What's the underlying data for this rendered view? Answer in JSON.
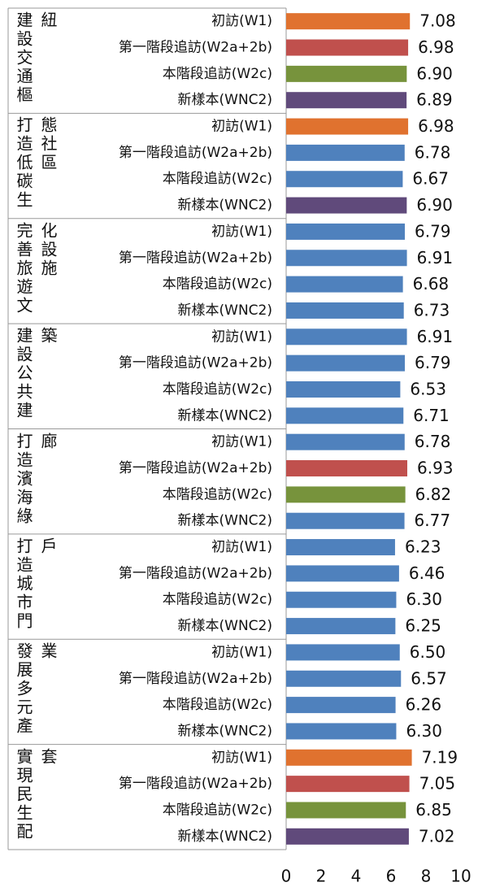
{
  "chart_data": {
    "type": "bar",
    "orientation": "horizontal",
    "categories": [
      "建設交通樞紐",
      "打造低碳生態社區",
      "完善旅遊文化設施",
      "建設公共建築",
      "打造濱海綠廊",
      "打造城市門戶",
      "發展多元產業",
      "實現民生配套"
    ],
    "series": [
      {
        "name": "初訪(W1)",
        "values": [
          7.08,
          6.98,
          6.79,
          6.91,
          6.78,
          6.23,
          6.5,
          7.19
        ],
        "value_labels": [
          "7.08",
          "6.98",
          "6.79",
          "6.91",
          "6.78",
          "6.23",
          "6.50",
          "7.19"
        ],
        "colors": [
          "#e0722f",
          "#e0722f",
          "#4f81bd",
          "#4f81bd",
          "#4f81bd",
          "#4f81bd",
          "#4f81bd",
          "#e0722f"
        ]
      },
      {
        "name": "第一階段追訪(W2a+2b)",
        "values": [
          6.98,
          6.78,
          6.91,
          6.79,
          6.93,
          6.46,
          6.57,
          7.05
        ],
        "value_labels": [
          "6.98",
          "6.78",
          "6.91",
          "6.79",
          "6.93",
          "6.46",
          "6.57",
          "7.05"
        ],
        "colors": [
          "#c0504d",
          "#4f81bd",
          "#4f81bd",
          "#4f81bd",
          "#c0504d",
          "#4f81bd",
          "#4f81bd",
          "#c0504d"
        ]
      },
      {
        "name": "本階段追訪(W2c)",
        "values": [
          6.9,
          6.67,
          6.68,
          6.53,
          6.82,
          6.3,
          6.26,
          6.85
        ],
        "value_labels": [
          "6.90",
          "6.67",
          "6.68",
          "6.53",
          "6.82",
          "6.30",
          "6.26",
          "6.85"
        ],
        "colors": [
          "#77933c",
          "#4f81bd",
          "#4f81bd",
          "#4f81bd",
          "#77933c",
          "#4f81bd",
          "#4f81bd",
          "#77933c"
        ]
      },
      {
        "name": "新樣本(WNC2)",
        "values": [
          6.89,
          6.9,
          6.73,
          6.71,
          6.77,
          6.25,
          6.3,
          7.02
        ],
        "value_labels": [
          "6.89",
          "6.90",
          "6.73",
          "6.71",
          "6.77",
          "6.25",
          "6.30",
          "7.02"
        ],
        "colors": [
          "#604a7b",
          "#604a7b",
          "#4f81bd",
          "#4f81bd",
          "#4f81bd",
          "#4f81bd",
          "#4f81bd",
          "#604a7b"
        ]
      }
    ],
    "xlim": [
      0,
      10
    ],
    "xticks": [
      0,
      2,
      4,
      6,
      8,
      10
    ]
  }
}
